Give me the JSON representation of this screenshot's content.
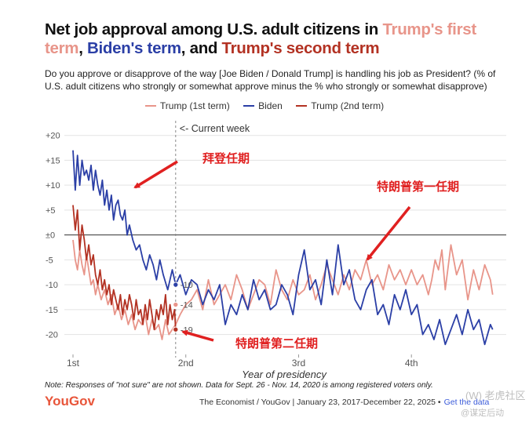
{
  "header": {
    "title_prefix": "Net job approval among U.S. adult citizens in ",
    "title_t1": "Trump's first term",
    "title_sep1": ", ",
    "title_biden": "Biden's term",
    "title_sep2": ", and ",
    "title_t2": "Trump's second term",
    "subtitle": "Do you approve or disapprove of the way [Joe Biden / Donald Trump] is handling his job as President? (% of U.S. adult citizens who strongly or somewhat approve minus the % who strongly or somewhat disapprove)"
  },
  "footer": {
    "note": "Note: Responses of \"not sure\" are not shown. Data for Sept. 26 - Nov. 14, 2020 is among registered voters only.",
    "logo": "YouGov",
    "source": "The Economist / YouGov | January 23, 2017-December 22, 2025 •",
    "get_data": "Get the data",
    "watermark_top": "(W) 老虎社区",
    "watermark_bottom": "@谋定后动"
  },
  "chart_data": {
    "type": "line",
    "title": "Net job approval among U.S. adult citizens in Trump's first term, Biden's term, and Trump's second term",
    "xlabel": "Year of presidency",
    "ylabel": "",
    "x_ticks": [
      "1st",
      "2nd",
      "3rd",
      "4th"
    ],
    "x_range": [
      1,
      4.75
    ],
    "ylim": [
      -24,
      22
    ],
    "y_ticks": [
      20,
      15,
      10,
      5,
      0,
      -5,
      -10,
      -15,
      -20
    ],
    "y_tick_labels": [
      "+20",
      "+15",
      "+10",
      "+5",
      "±0",
      "-5",
      "-10",
      "-15",
      "-20"
    ],
    "colors": {
      "trump1": "#e8958a",
      "biden": "#2b3fa6",
      "trump2": "#b33223",
      "annotation": "#e02020"
    },
    "current_week_x": 1.91,
    "current_week_label": "<- Current week",
    "series": [
      {
        "name": "Trump (1st term)",
        "key": "trump1",
        "x": [
          1.0,
          1.02,
          1.04,
          1.06,
          1.08,
          1.1,
          1.12,
          1.14,
          1.16,
          1.18,
          1.2,
          1.22,
          1.25,
          1.28,
          1.31,
          1.34,
          1.37,
          1.4,
          1.43,
          1.46,
          1.49,
          1.52,
          1.55,
          1.58,
          1.61,
          1.64,
          1.67,
          1.7,
          1.73,
          1.76,
          1.79,
          1.82,
          1.85,
          1.88,
          1.91,
          1.95,
          2.0,
          2.05,
          2.1,
          2.15,
          2.2,
          2.25,
          2.3,
          2.35,
          2.4,
          2.45,
          2.5,
          2.55,
          2.6,
          2.65,
          2.7,
          2.75,
          2.8,
          2.85,
          2.9,
          2.95,
          3.0,
          3.05,
          3.1,
          3.15,
          3.2,
          3.25,
          3.3,
          3.35,
          3.4,
          3.45,
          3.5,
          3.55,
          3.6,
          3.65,
          3.7,
          3.75,
          3.8,
          3.85,
          3.9,
          3.95,
          4.0,
          4.05,
          4.1,
          4.15,
          4.18,
          4.21,
          4.24,
          4.27,
          4.3,
          4.35,
          4.4,
          4.45,
          4.5,
          4.55,
          4.6,
          4.65,
          4.7,
          4.72
        ],
        "values": [
          -1,
          -5,
          -7,
          -3,
          -6,
          -8,
          -4,
          -7,
          -10,
          -9,
          -12,
          -10,
          -13,
          -11,
          -14,
          -12,
          -16,
          -14,
          -17,
          -15,
          -18,
          -16,
          -19,
          -17,
          -18,
          -16,
          -20,
          -17,
          -19,
          -18,
          -21,
          -17,
          -20,
          -19,
          -18,
          -16,
          -14,
          -13,
          -11,
          -15,
          -9,
          -14,
          -12,
          -10,
          -13,
          -8,
          -11,
          -15,
          -12,
          -9,
          -10,
          -14,
          -7,
          -11,
          -13,
          -9,
          -12,
          -11,
          -8,
          -13,
          -10,
          -6,
          -9,
          -12,
          -8,
          -11,
          -7,
          -9,
          -5,
          -10,
          -8,
          -11,
          -6,
          -9,
          -7,
          -10,
          -7,
          -10,
          -8,
          -12,
          -9,
          -5,
          -7,
          -3,
          -11,
          -2,
          -8,
          -5,
          -13,
          -7,
          -11,
          -6,
          -9,
          -12
        ]
      },
      {
        "name": "Biden",
        "key": "biden",
        "x": [
          1.0,
          1.02,
          1.04,
          1.06,
          1.08,
          1.1,
          1.12,
          1.14,
          1.16,
          1.18,
          1.2,
          1.22,
          1.24,
          1.26,
          1.28,
          1.3,
          1.32,
          1.34,
          1.36,
          1.38,
          1.4,
          1.42,
          1.44,
          1.46,
          1.48,
          1.5,
          1.53,
          1.56,
          1.59,
          1.62,
          1.65,
          1.68,
          1.71,
          1.74,
          1.77,
          1.8,
          1.84,
          1.88,
          1.91,
          1.95,
          2.0,
          2.05,
          2.1,
          2.15,
          2.2,
          2.25,
          2.3,
          2.35,
          2.4,
          2.45,
          2.5,
          2.55,
          2.6,
          2.65,
          2.7,
          2.75,
          2.8,
          2.85,
          2.9,
          2.95,
          3.0,
          3.05,
          3.1,
          3.15,
          3.2,
          3.25,
          3.3,
          3.35,
          3.4,
          3.45,
          3.5,
          3.55,
          3.6,
          3.65,
          3.7,
          3.75,
          3.8,
          3.85,
          3.9,
          3.95,
          4.0,
          4.05,
          4.1,
          4.15,
          4.2,
          4.25,
          4.3,
          4.35,
          4.4,
          4.45,
          4.5,
          4.55,
          4.6,
          4.65,
          4.7,
          4.72
        ],
        "values": [
          17,
          9,
          16,
          10,
          15,
          12,
          13,
          11,
          14,
          9,
          13,
          10,
          8,
          11,
          6,
          9,
          5,
          8,
          3,
          6,
          7,
          4,
          3,
          5,
          0,
          2,
          -1,
          -3,
          -2,
          -5,
          -7,
          -4,
          -6,
          -9,
          -5,
          -8,
          -11,
          -7,
          -10,
          -8,
          -12,
          -9,
          -10,
          -14,
          -11,
          -13,
          -10,
          -18,
          -14,
          -16,
          -12,
          -15,
          -9,
          -13,
          -11,
          -15,
          -14,
          -10,
          -12,
          -16,
          -8,
          -3,
          -11,
          -9,
          -14,
          -5,
          -12,
          -2,
          -10,
          -7,
          -13,
          -15,
          -11,
          -9,
          -16,
          -14,
          -18,
          -12,
          -15,
          -11,
          -16,
          -14,
          -20,
          -18,
          -21,
          -17,
          -22,
          -19,
          -16,
          -20,
          -15,
          -19,
          -17,
          -22,
          -18,
          -19
        ]
      },
      {
        "name": "Trump (2nd term)",
        "key": "trump2",
        "x": [
          1.0,
          1.02,
          1.04,
          1.06,
          1.08,
          1.1,
          1.12,
          1.14,
          1.16,
          1.18,
          1.2,
          1.22,
          1.24,
          1.26,
          1.28,
          1.3,
          1.32,
          1.34,
          1.36,
          1.38,
          1.4,
          1.42,
          1.44,
          1.46,
          1.48,
          1.5,
          1.52,
          1.54,
          1.56,
          1.58,
          1.6,
          1.62,
          1.64,
          1.66,
          1.68,
          1.7,
          1.72,
          1.74,
          1.76,
          1.78,
          1.8,
          1.82,
          1.84,
          1.86,
          1.88,
          1.9,
          1.91
        ],
        "values": [
          6,
          1,
          5,
          -3,
          2,
          -1,
          -5,
          -2,
          -6,
          -4,
          -8,
          -10,
          -7,
          -11,
          -9,
          -12,
          -10,
          -14,
          -11,
          -13,
          -15,
          -12,
          -16,
          -13,
          -15,
          -12,
          -14,
          -17,
          -13,
          -16,
          -15,
          -18,
          -14,
          -17,
          -13,
          -16,
          -19,
          -15,
          -17,
          -14,
          -16,
          -12,
          -18,
          -14,
          -17,
          -15,
          -19
        ]
      }
    ],
    "end_labels": [
      {
        "key": "biden",
        "label": "-10",
        "value": -10
      },
      {
        "key": "trump1",
        "label": "-14",
        "value": -14
      },
      {
        "key": "trump2",
        "label": "-19",
        "value": -19
      }
    ],
    "annotations": [
      {
        "text": "拜登任期",
        "points_to": "biden"
      },
      {
        "text": "特朗普第一任期",
        "points_to": "trump1"
      },
      {
        "text": "特朗普第二任期",
        "points_to": "trump2"
      }
    ]
  }
}
